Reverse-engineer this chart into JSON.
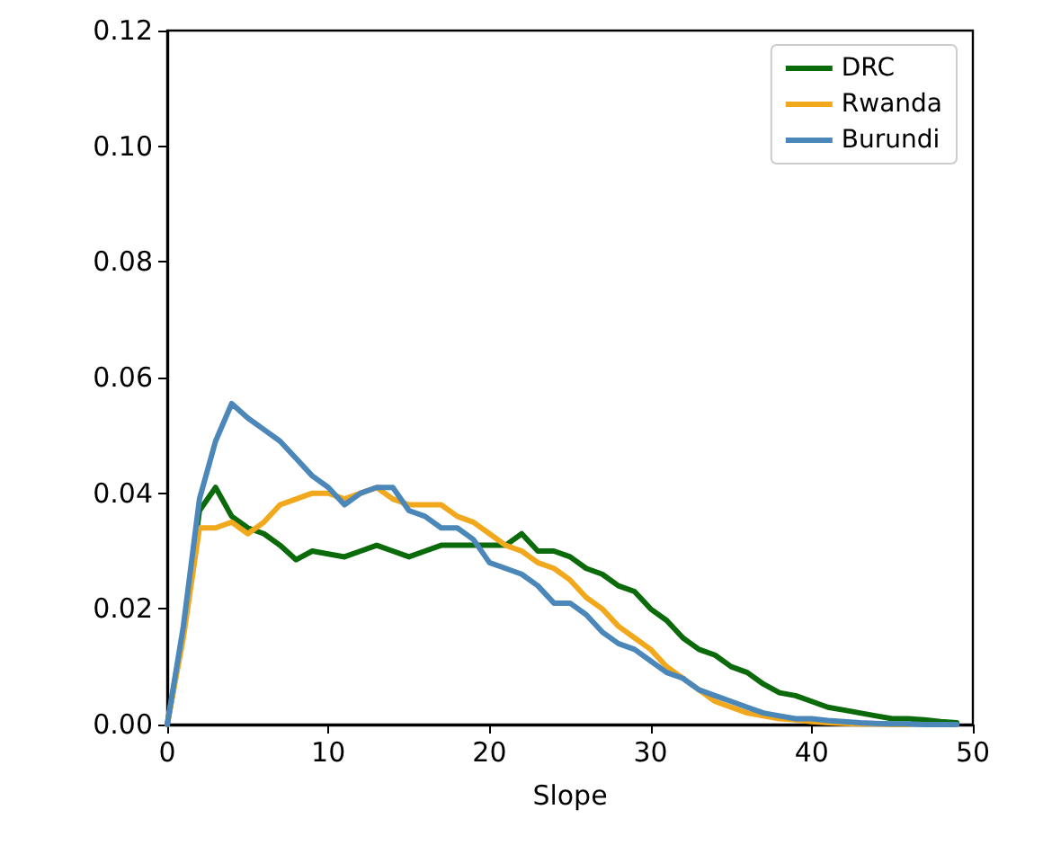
{
  "chart_data": {
    "type": "line",
    "xlabel": "Slope",
    "x": [
      0,
      1,
      2,
      3,
      4,
      5,
      6,
      7,
      8,
      9,
      10,
      11,
      12,
      13,
      14,
      15,
      16,
      17,
      18,
      19,
      20,
      21,
      22,
      23,
      24,
      25,
      26,
      27,
      28,
      29,
      30,
      31,
      32,
      33,
      34,
      35,
      36,
      37,
      38,
      39,
      40,
      41,
      42,
      43,
      44,
      45,
      46,
      47,
      48,
      49
    ],
    "series": [
      {
        "name": "DRC",
        "color": "#0b6b0b",
        "values": [
          0,
          0.016,
          0.037,
          0.041,
          0.036,
          0.034,
          0.033,
          0.031,
          0.0285,
          0.03,
          0.0295,
          0.029,
          0.03,
          0.031,
          0.03,
          0.029,
          0.03,
          0.031,
          0.031,
          0.031,
          0.031,
          0.031,
          0.033,
          0.03,
          0.03,
          0.029,
          0.027,
          0.026,
          0.024,
          0.023,
          0.02,
          0.018,
          0.015,
          0.013,
          0.012,
          0.01,
          0.009,
          0.007,
          0.0055,
          0.005,
          0.004,
          0.003,
          0.0025,
          0.002,
          0.0015,
          0.001,
          0.001,
          0.0008,
          0.0005,
          0.0003
        ]
      },
      {
        "name": "Rwanda",
        "color": "#f2a81d",
        "values": [
          0,
          0.015,
          0.034,
          0.034,
          0.035,
          0.033,
          0.035,
          0.038,
          0.039,
          0.04,
          0.04,
          0.039,
          0.04,
          0.041,
          0.039,
          0.038,
          0.038,
          0.038,
          0.036,
          0.035,
          0.033,
          0.031,
          0.03,
          0.028,
          0.027,
          0.025,
          0.022,
          0.02,
          0.017,
          0.015,
          0.013,
          0.01,
          0.008,
          0.006,
          0.004,
          0.003,
          0.002,
          0.0015,
          0.001,
          0.0008,
          0.0005,
          0.0003,
          0.0002,
          0.0001,
          0.0001,
          0,
          0,
          null,
          null,
          null
        ]
      },
      {
        "name": "Burundi",
        "color": "#4b87b9",
        "values": [
          0,
          0.017,
          0.039,
          0.049,
          0.0555,
          0.053,
          0.051,
          0.049,
          0.046,
          0.043,
          0.041,
          0.038,
          0.04,
          0.041,
          0.041,
          0.037,
          0.036,
          0.034,
          0.034,
          0.032,
          0.028,
          0.027,
          0.026,
          0.024,
          0.021,
          0.021,
          0.019,
          0.016,
          0.014,
          0.013,
          0.011,
          0.009,
          0.008,
          0.006,
          0.005,
          0.004,
          0.003,
          0.002,
          0.0015,
          0.001,
          0.001,
          0.0007,
          0.0005,
          0.0003,
          0.0002,
          0.0001,
          0.0001,
          0,
          0,
          0
        ]
      }
    ],
    "xlim": [
      0,
      50
    ],
    "xticks": [
      0,
      10,
      20,
      30,
      40,
      50
    ],
    "ylim": [
      0,
      0.12
    ],
    "yticks": [
      {
        "value": 0,
        "label": "0.00"
      },
      {
        "value": 0.02,
        "label": "0.02"
      },
      {
        "value": 0.04,
        "label": "0.04"
      },
      {
        "value": 0.06,
        "label": "0.06"
      },
      {
        "value": 0.08,
        "label": "0.08"
      },
      {
        "value": 0.1,
        "label": "0.10"
      },
      {
        "value": 0.12,
        "label": "0.12"
      }
    ],
    "grid": false,
    "legend": "top right",
    "marker": "none",
    "line_style": "solid"
  }
}
